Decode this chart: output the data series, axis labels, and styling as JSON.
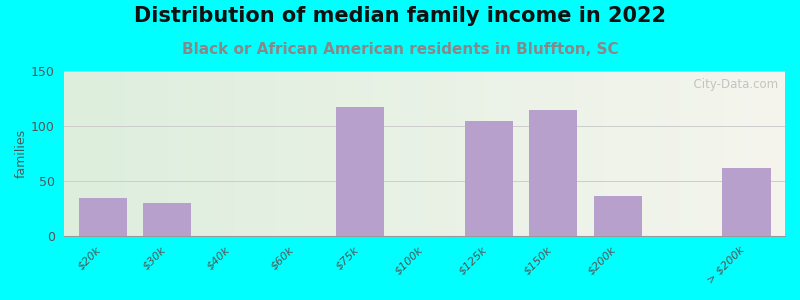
{
  "title": "Distribution of median family income in 2022",
  "subtitle": "Black or African American residents in Bluffton, SC",
  "ylabel": "families",
  "bar_labels": [
    "$20k",
    "$30k",
    "$40k",
    "$60k",
    "$75k",
    "$100k",
    "$125k",
    "$150k",
    "$200k",
    "> $200k"
  ],
  "bar_heights": [
    35,
    30,
    0,
    0,
    117,
    0,
    105,
    115,
    37,
    0,
    62
  ],
  "bar_positions": [
    0,
    1,
    2,
    3,
    4,
    5,
    6,
    7,
    8,
    9,
    10
  ],
  "tick_positions": [
    0,
    1,
    2,
    3,
    4,
    5,
    6,
    7,
    8,
    10
  ],
  "tick_labels": [
    "$20k",
    "$30k",
    "$40k",
    "$60k",
    "$75k",
    "$100k",
    "$125k",
    "$150k",
    "$200k",
    "> $200k"
  ],
  "active_bar_positions": [
    0,
    1,
    4,
    6,
    7,
    8,
    10
  ],
  "active_bar_heights": [
    35,
    30,
    117,
    105,
    115,
    37,
    62
  ],
  "ylim": [
    0,
    150
  ],
  "yticks": [
    0,
    50,
    100,
    150
  ],
  "bar_color": "#b8a0cc",
  "bar_edge_color": "none",
  "background_color": "#00ffff",
  "plot_bg_left": "#ddeedd",
  "plot_bg_right": "#f5f5ee",
  "title_fontsize": 15,
  "subtitle_fontsize": 11,
  "subtitle_color": "#888888",
  "ylabel_fontsize": 9,
  "tick_fontsize": 8,
  "watermark": "  City-Data.com",
  "watermark_color": "#bbbbbb"
}
